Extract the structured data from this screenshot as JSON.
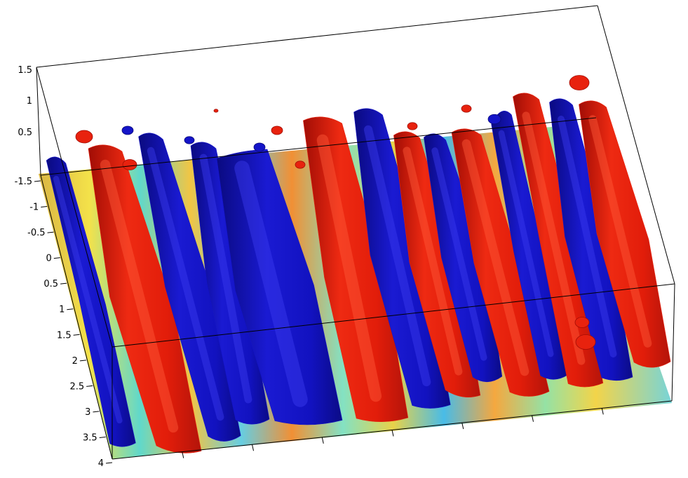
{
  "chart_data": {
    "type": "3d-isosurface",
    "title": "",
    "xlabel": "",
    "ylabel": "",
    "zlabel": "",
    "y_ticks": [
      "-1.5",
      "-1",
      "-0.5",
      "0",
      "0.5",
      "1",
      "1.5",
      "2",
      "2.5",
      "3",
      "3.5",
      "4"
    ],
    "z_ticks": [
      "0.5",
      "1",
      "1.5"
    ],
    "ylim": [
      -1.5,
      4
    ],
    "zlim": [
      0,
      1.5
    ],
    "grid": false,
    "legend": "none",
    "isosurfaces": [
      {
        "sign": "positive",
        "color": "#e8220e"
      },
      {
        "sign": "negative",
        "color": "#1414c8"
      }
    ],
    "floor_colormap": "jet",
    "colors": {
      "positive": "#e8220e",
      "positive_dark": "#a10d05",
      "negative": "#1414c8",
      "negative_dark": "#0a0a7a",
      "floor_base": "#6fd3d8"
    }
  }
}
